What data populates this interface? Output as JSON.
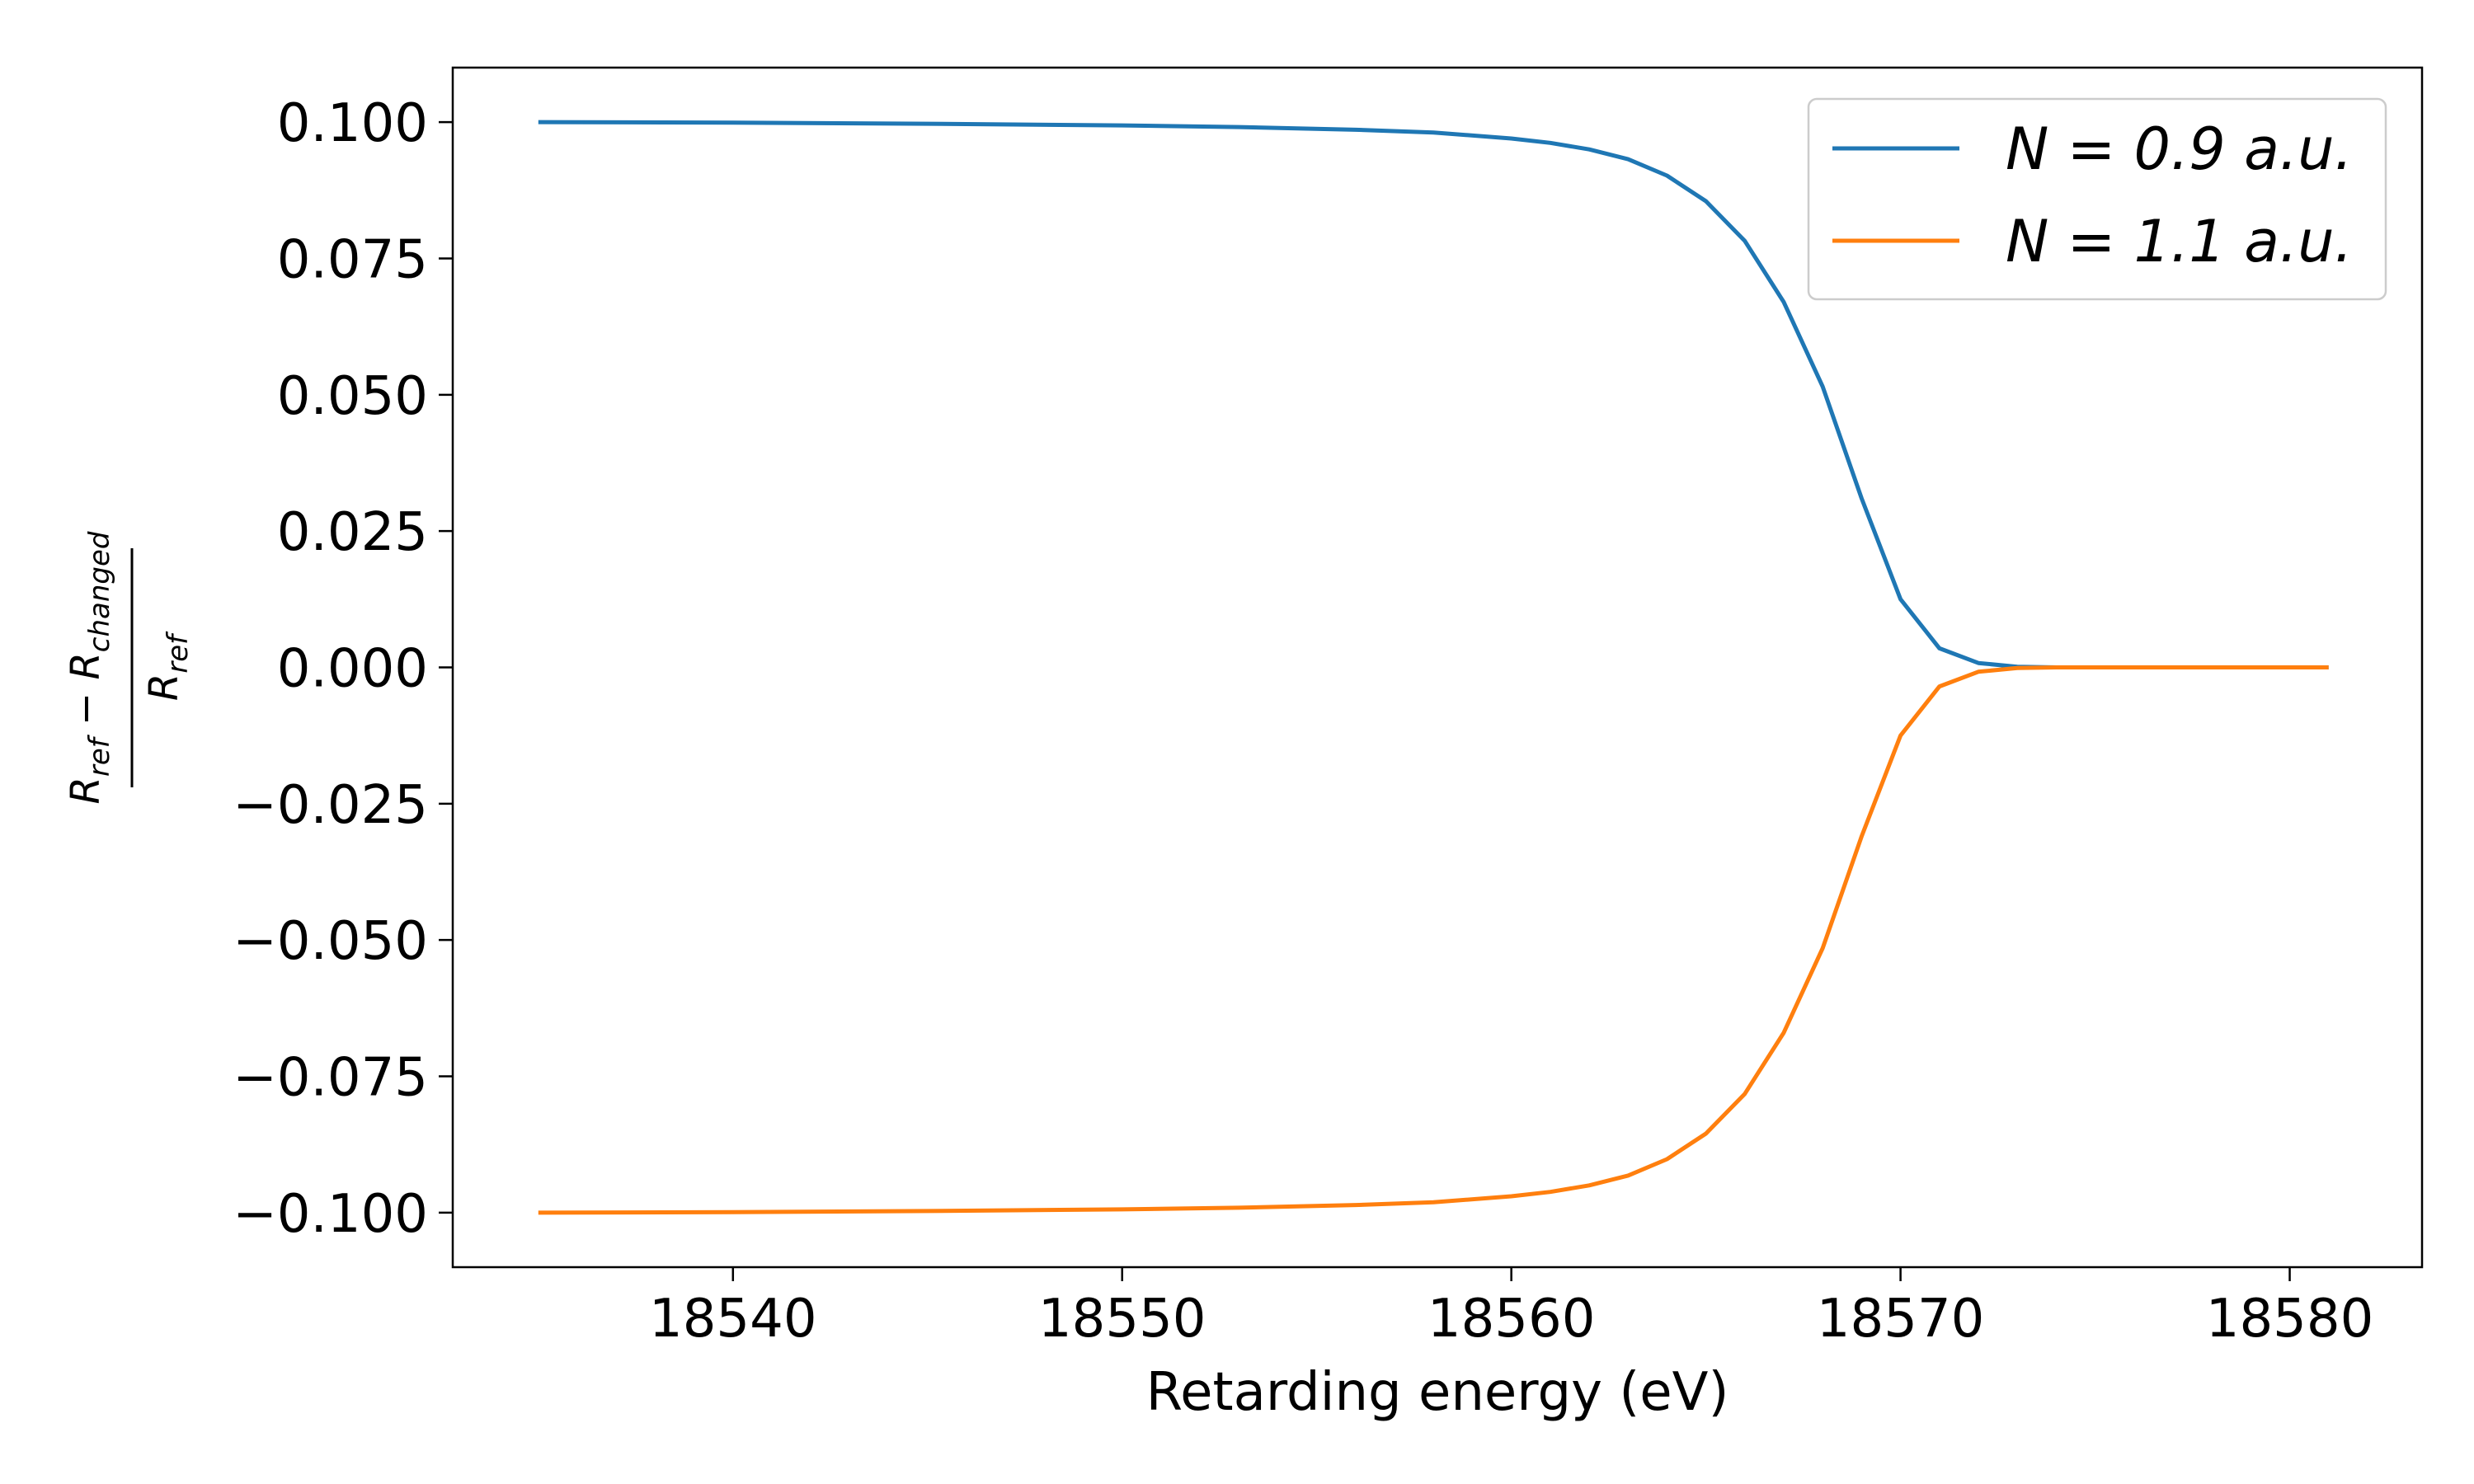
{
  "chart_data": {
    "type": "line",
    "title": "",
    "xlabel": "Retarding energy (eV)",
    "ylabel": {
      "numerator_main": "R",
      "numerator_sub1": "ref",
      "numerator_minus": " − ",
      "numerator_main2": "R",
      "numerator_sub2": "changed",
      "denominator_main": "R",
      "denominator_sub": "ref"
    },
    "xlim": [
      18532.8,
      18583.4
    ],
    "ylim": [
      -0.11,
      0.11
    ],
    "x_ticks": [
      18540,
      18550,
      18560,
      18570,
      18580
    ],
    "x_tick_labels": [
      "18540",
      "18550",
      "18560",
      "18570",
      "18580"
    ],
    "y_ticks": [
      0.1,
      0.075,
      0.05,
      0.025,
      0.0,
      -0.025,
      -0.05,
      -0.075,
      -0.1
    ],
    "y_tick_labels": [
      "0.100",
      "0.075",
      "0.050",
      "0.025",
      "0.000",
      "−0.025",
      "−0.050",
      "−0.075",
      "−0.100"
    ],
    "grid": false,
    "legend_position": "top-right",
    "series": [
      {
        "name": "N = 0.9 a.u.",
        "color": "#1f77b4",
        "x": [
          18535,
          18540,
          18545,
          18550,
          18553,
          18556,
          18558,
          18560,
          18561,
          18562,
          18563,
          18564,
          18565,
          18566,
          18567,
          18568,
          18569,
          18570,
          18571,
          18572,
          18573,
          18574,
          18576,
          18578,
          18581
        ],
        "y": [
          0.1,
          0.0999,
          0.0997,
          0.0994,
          0.0991,
          0.0986,
          0.0981,
          0.097,
          0.0962,
          0.095,
          0.0932,
          0.0902,
          0.0855,
          0.0782,
          0.067,
          0.0515,
          0.031,
          0.0125,
          0.0035,
          0.0008,
          0.0001,
          0.0,
          0.0,
          0.0,
          0.0
        ]
      },
      {
        "name": "N = 1.1 a.u.",
        "color": "#ff7f0e",
        "x": [
          18535,
          18540,
          18545,
          18550,
          18553,
          18556,
          18558,
          18560,
          18561,
          18562,
          18563,
          18564,
          18565,
          18566,
          18567,
          18568,
          18569,
          18570,
          18571,
          18572,
          18573,
          18574,
          18576,
          18578,
          18581
        ],
        "y": [
          -0.1,
          -0.0999,
          -0.0997,
          -0.0994,
          -0.0991,
          -0.0986,
          -0.0981,
          -0.097,
          -0.0962,
          -0.095,
          -0.0932,
          -0.0902,
          -0.0855,
          -0.0782,
          -0.067,
          -0.0515,
          -0.031,
          -0.0125,
          -0.0035,
          -0.0008,
          -0.0001,
          0.0,
          0.0,
          0.0,
          0.0
        ]
      }
    ]
  },
  "legend": [
    {
      "label": "N = 0.9 a.u.",
      "color": "#1f77b4"
    },
    {
      "label": "N = 1.1 a.u.",
      "color": "#ff7f0e"
    }
  ]
}
